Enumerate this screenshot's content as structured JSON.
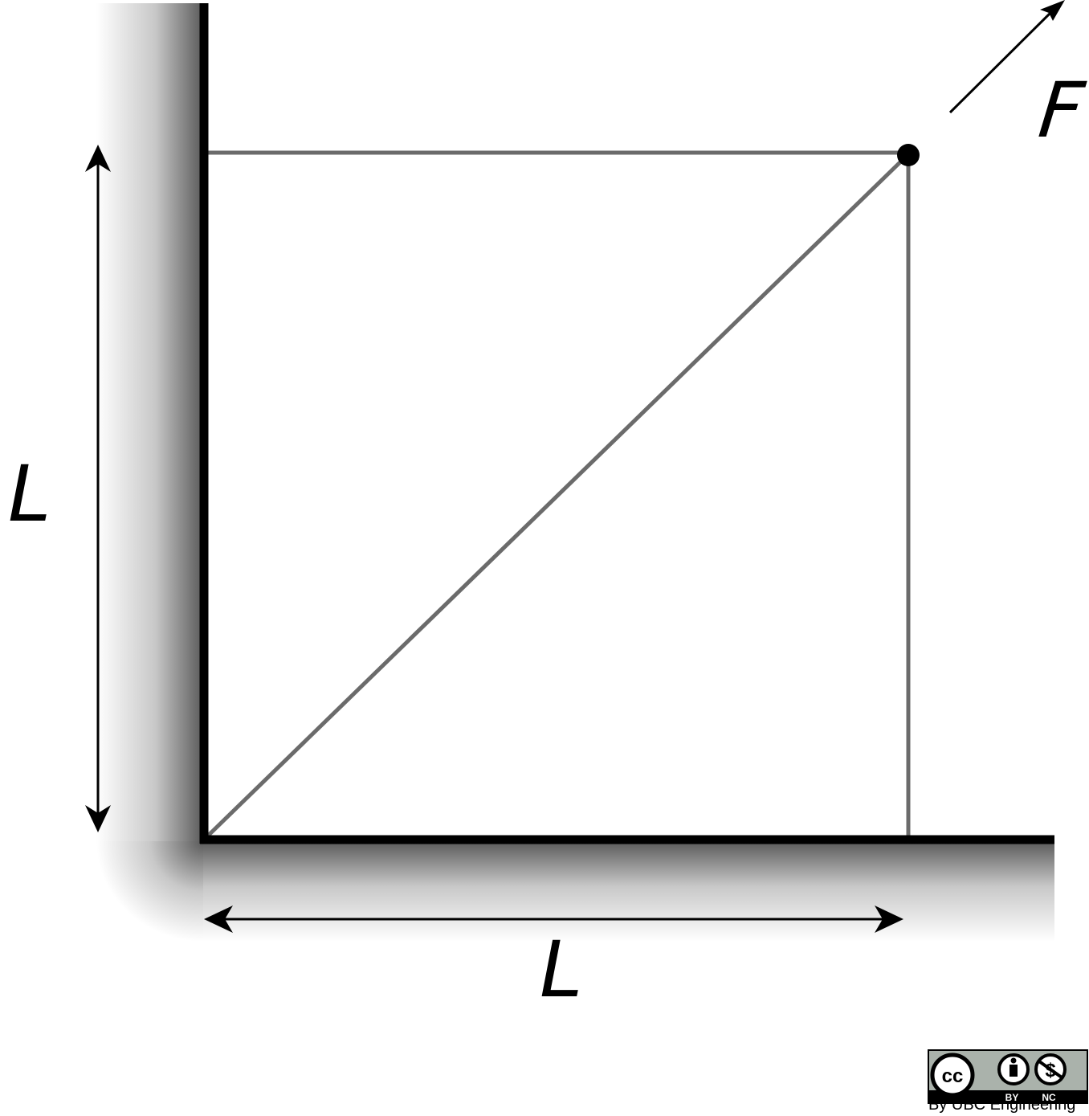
{
  "diagram": {
    "labels": {
      "force": "F",
      "left_length": "L",
      "bottom_length": "L"
    },
    "colors": {
      "wall": "#000000",
      "member": "#6b6b6b",
      "joint": "#000000",
      "arrow": "#000000",
      "shadow": "#808080"
    }
  },
  "license": {
    "cc": "cc",
    "by": "BY",
    "nc": "NC",
    "credit": "By UBC Engineering"
  }
}
